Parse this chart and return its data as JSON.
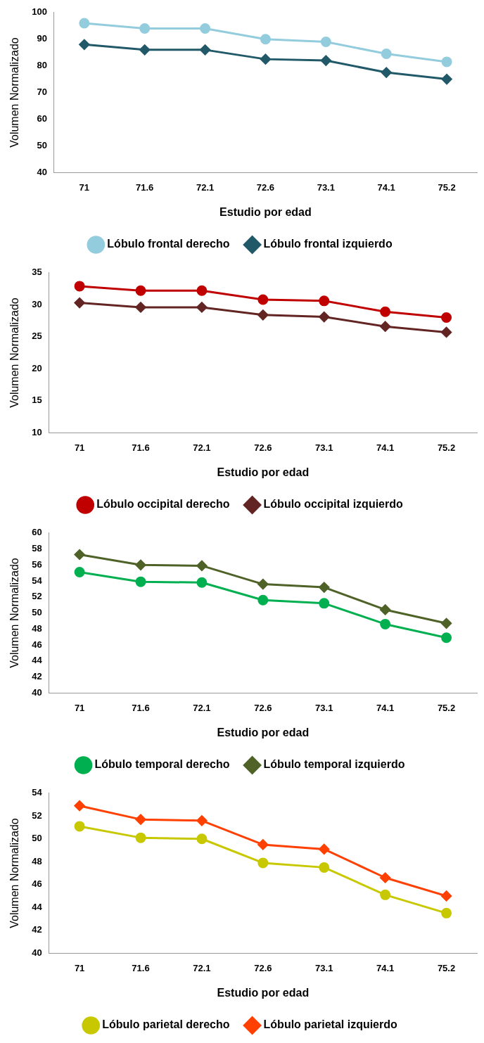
{
  "chart_data": [
    {
      "type": "line",
      "xlabel": "Estudio por edad",
      "ylabel": "Volumen Normalizado",
      "categories": [
        "71",
        "71.6",
        "72.1",
        "72.6",
        "73.1",
        "74.1",
        "75.2"
      ],
      "ylim": [
        40,
        100
      ],
      "yticks": [
        40,
        50,
        60,
        70,
        80,
        90,
        100
      ],
      "grid": false,
      "legend": "bottom",
      "series": [
        {
          "name": "Lóbulo frontal derecho",
          "color": "#93cddd",
          "marker": "circle",
          "values": [
            96,
            94,
            94,
            90,
            89,
            84.5,
            81.5
          ]
        },
        {
          "name": "Lóbulo frontal izquierdo",
          "color": "#215968",
          "marker": "diamond",
          "values": [
            88,
            86,
            86,
            82.5,
            82,
            77.5,
            75
          ]
        }
      ]
    },
    {
      "type": "line",
      "xlabel": "Estudio por edad",
      "ylabel": "Volumen Normalizado",
      "categories": [
        "71",
        "71.6",
        "72.1",
        "72.6",
        "73.1",
        "74.1",
        "75.2"
      ],
      "ylim": [
        10,
        35
      ],
      "yticks": [
        10,
        15,
        20,
        25,
        30,
        35
      ],
      "grid": false,
      "legend": "bottom",
      "series": [
        {
          "name": "Lóbulo occipital derecho",
          "color": "#c00000",
          "marker": "circle",
          "values": [
            32.9,
            32.2,
            32.2,
            30.8,
            30.6,
            28.9,
            28
          ]
        },
        {
          "name": "Lóbulo occipital izquierdo",
          "color": "#632523",
          "marker": "diamond",
          "values": [
            30.3,
            29.6,
            29.6,
            28.4,
            28.1,
            26.6,
            25.7
          ]
        }
      ]
    },
    {
      "type": "line",
      "xlabel": "Estudio por edad",
      "ylabel": "Volumen Normalizado",
      "categories": [
        "71",
        "71.6",
        "72.1",
        "72.6",
        "73.1",
        "74.1",
        "75.2"
      ],
      "ylim": [
        40,
        60
      ],
      "yticks": [
        40,
        42,
        44,
        46,
        48,
        50,
        52,
        54,
        56,
        58,
        60
      ],
      "grid": false,
      "legend": "bottom",
      "series": [
        {
          "name": "Lóbulo temporal derecho",
          "color": "#00b050",
          "marker": "circle",
          "values": [
            55.1,
            53.9,
            53.8,
            51.6,
            51.2,
            48.6,
            46.9
          ]
        },
        {
          "name": "Lóbulo temporal izquierdo",
          "color": "#4f6228",
          "marker": "diamond",
          "values": [
            57.3,
            56,
            55.9,
            53.6,
            53.2,
            50.4,
            48.7
          ]
        }
      ]
    },
    {
      "type": "line",
      "xlabel": "Estudio por edad",
      "ylabel": "Volumen Normalizado",
      "categories": [
        "71",
        "71.6",
        "72.1",
        "72.6",
        "73.1",
        "74.1",
        "75.2"
      ],
      "ylim": [
        40,
        54
      ],
      "yticks": [
        40,
        42,
        44,
        46,
        48,
        50,
        52,
        54
      ],
      "grid": false,
      "legend": "bottom",
      "series": [
        {
          "name": "Lóbulo parietal derecho",
          "color": "#c8c800",
          "marker": "circle",
          "values": [
            51.1,
            50.1,
            50,
            47.9,
            47.5,
            45.1,
            43.5
          ]
        },
        {
          "name": "Lóbulo parietal izquierdo",
          "color": "#ff4000",
          "marker": "diamond",
          "values": [
            52.9,
            51.7,
            51.6,
            49.5,
            49.1,
            46.6,
            45
          ]
        }
      ]
    }
  ]
}
